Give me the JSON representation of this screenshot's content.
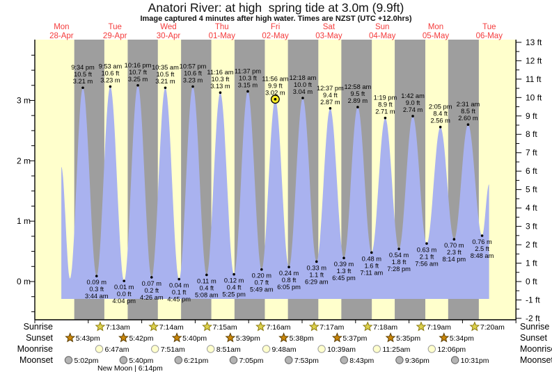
{
  "chart_data": {
    "type": "area",
    "title": "Anatori River: at high  spring tide at 3.0m (9.9ft)",
    "subtitle": "Image captured 4 minutes after high water. Times are NZST (UTC +12.0hrs)",
    "days": [
      {
        "label": "Mon",
        "date": "28-Apr"
      },
      {
        "label": "Tue",
        "date": "29-Apr"
      },
      {
        "label": "Wed",
        "date": "30-Apr"
      },
      {
        "label": "Thu",
        "date": "01-May"
      },
      {
        "label": "Fri",
        "date": "02-May"
      },
      {
        "label": "Sat",
        "date": "03-May"
      },
      {
        "label": "Sun",
        "date": "04-May"
      },
      {
        "label": "Mon",
        "date": "05-May"
      },
      {
        "label": "Tue",
        "date": "06-May"
      }
    ],
    "y_axis_left": {
      "unit": "m",
      "labels": [
        "0 m",
        "1 m",
        "2 m",
        "3 m"
      ],
      "values": [
        0,
        1,
        2,
        3
      ]
    },
    "y_axis_right": {
      "unit": "ft",
      "min": -2,
      "max": 13
    },
    "colors": {
      "day": "#ffffcc",
      "night": "#9e9e9e",
      "tide": "#a9b2ef",
      "day_label": "#f43b3b",
      "marker": "#ffee22"
    },
    "tide_extrema": [
      {
        "h": 11.9,
        "height_m": 1.9
      },
      {
        "h": 15.78,
        "height_m": 0.05
      },
      {
        "kind": "H",
        "day": 0,
        "time": "9:34 pm",
        "ft": "10.5 ft",
        "m": "3.21 m",
        "height_m": 3.21
      },
      {
        "kind": "L",
        "day": 1,
        "time": "3:44 am",
        "ft": "0.3 ft",
        "m": "0.09 m",
        "height_m": 0.09
      },
      {
        "kind": "H",
        "day": 1,
        "time": "9:53 am",
        "ft": "10.6 ft",
        "m": "3.23 m",
        "height_m": 3.23
      },
      {
        "kind": "L",
        "day": 1,
        "time": "4:04 pm",
        "ft": "0.0 ft",
        "m": "0.01 m",
        "height_m": 0.01
      },
      {
        "kind": "H",
        "day": 1,
        "time": "10:16 pm",
        "ft": "10.7 ft",
        "m": "3.25 m",
        "height_m": 3.25
      },
      {
        "kind": "L",
        "day": 2,
        "time": "4:26 am",
        "ft": "0.2 ft",
        "m": "0.07 m",
        "height_m": 0.07
      },
      {
        "kind": "H",
        "day": 2,
        "time": "10:35 am",
        "ft": "10.5 ft",
        "m": "3.21 m",
        "height_m": 3.21
      },
      {
        "kind": "L",
        "day": 2,
        "time": "4:45 pm",
        "ft": "0.1 ft",
        "m": "0.04 m",
        "height_m": 0.04
      },
      {
        "kind": "H",
        "day": 2,
        "time": "10:57 pm",
        "ft": "10.6 ft",
        "m": "3.23 m",
        "height_m": 3.23
      },
      {
        "kind": "L",
        "day": 3,
        "time": "5:08 am",
        "ft": "0.4 ft",
        "m": "0.11 m",
        "height_m": 0.11
      },
      {
        "kind": "H",
        "day": 3,
        "time": "11:16 am",
        "ft": "10.3 ft",
        "m": "3.13 m",
        "height_m": 3.13
      },
      {
        "kind": "L",
        "day": 3,
        "time": "5:25 pm",
        "ft": "0.4 ft",
        "m": "0.12 m",
        "height_m": 0.12
      },
      {
        "kind": "H",
        "day": 3,
        "time": "11:37 pm",
        "ft": "10.3 ft",
        "m": "3.15 m",
        "height_m": 3.15
      },
      {
        "kind": "L",
        "day": 4,
        "time": "5:49 am",
        "ft": "0.7 ft",
        "m": "0.20 m",
        "height_m": 0.2
      },
      {
        "kind": "H",
        "day": 4,
        "time": "11:56 am",
        "ft": "9.9 ft",
        "m": "3.02 m",
        "height_m": 3.02,
        "marker": true
      },
      {
        "kind": "L",
        "day": 4,
        "time": "6:05 pm",
        "ft": "0.8 ft",
        "m": "0.24 m",
        "height_m": 0.24
      },
      {
        "kind": "H",
        "day": 5,
        "time": "12:18 am",
        "ft": "10.0 ft",
        "m": "3.04 m",
        "height_m": 3.04
      },
      {
        "kind": "L",
        "day": 5,
        "time": "6:29 am",
        "ft": "1.1 ft",
        "m": "0.33 m",
        "height_m": 0.33
      },
      {
        "kind": "H",
        "day": 5,
        "time": "12:37 pm",
        "ft": "9.4 ft",
        "m": "2.87 m",
        "height_m": 2.87
      },
      {
        "kind": "L",
        "day": 5,
        "time": "6:45 pm",
        "ft": "1.3 ft",
        "m": "0.39 m",
        "height_m": 0.39
      },
      {
        "kind": "H",
        "day": 6,
        "time": "12:58 am",
        "ft": "9.5 ft",
        "m": "2.89 m",
        "height_m": 2.89
      },
      {
        "kind": "L",
        "day": 6,
        "time": "7:11 am",
        "ft": "1.6 ft",
        "m": "0.48 m",
        "height_m": 0.48
      },
      {
        "kind": "H",
        "day": 6,
        "time": "1:19 pm",
        "ft": "8.9 ft",
        "m": "2.71 m",
        "height_m": 2.71
      },
      {
        "kind": "L",
        "day": 6,
        "time": "7:28 pm",
        "ft": "1.8 ft",
        "m": "0.54 m",
        "height_m": 0.54
      },
      {
        "kind": "H",
        "day": 7,
        "time": "1:42 am",
        "ft": "9.0 ft",
        "m": "2.74 m",
        "height_m": 2.74
      },
      {
        "kind": "L",
        "day": 7,
        "time": "7:56 am",
        "ft": "2.1 ft",
        "m": "0.63 m",
        "height_m": 0.63
      },
      {
        "kind": "H",
        "day": 7,
        "time": "2:05 pm",
        "ft": "8.4 ft",
        "m": "2.56 m",
        "height_m": 2.56
      },
      {
        "kind": "L",
        "day": 7,
        "time": "8:14 pm",
        "ft": "2.3 ft",
        "m": "0.70 m",
        "height_m": 0.7
      },
      {
        "kind": "H",
        "day": 8,
        "time": "2:31 am",
        "ft": "8.5 ft",
        "m": "2.60 m",
        "height_m": 2.6
      },
      {
        "kind": "L",
        "day": 8,
        "time": "8:48 am",
        "ft": "2.5 ft",
        "m": "0.76 m",
        "height_m": 0.76
      },
      {
        "h": 203.93,
        "height_m": 1.61
      }
    ],
    "astro": {
      "rows": [
        {
          "name": "Sunrise",
          "icon": "sunrise-star-icon",
          "items": [
            {
              "day": 1,
              "time": "7:13am"
            },
            {
              "day": 2,
              "time": "7:14am"
            },
            {
              "day": 3,
              "time": "7:15am"
            },
            {
              "day": 4,
              "time": "7:16am"
            },
            {
              "day": 5,
              "time": "7:17am"
            },
            {
              "day": 6,
              "time": "7:18am"
            },
            {
              "day": 7,
              "time": "7:19am"
            },
            {
              "day": 8,
              "time": "7:20am"
            }
          ]
        },
        {
          "name": "Sunset",
          "icon": "sunset-star-icon",
          "items": [
            {
              "day": 0,
              "time": "5:43pm"
            },
            {
              "day": 1,
              "time": "5:42pm"
            },
            {
              "day": 2,
              "time": "5:40pm"
            },
            {
              "day": 3,
              "time": "5:39pm"
            },
            {
              "day": 4,
              "time": "5:38pm"
            },
            {
              "day": 5,
              "time": "5:37pm"
            },
            {
              "day": 6,
              "time": "5:35pm"
            },
            {
              "day": 7,
              "time": "5:34pm"
            }
          ]
        },
        {
          "name": "Moonrise",
          "icon": "moonrise-circle-icon",
          "items": [
            {
              "day": 1,
              "time": "6:47am"
            },
            {
              "day": 2,
              "time": "7:51am"
            },
            {
              "day": 3,
              "time": "8:51am"
            },
            {
              "day": 4,
              "time": "9:48am"
            },
            {
              "day": 5,
              "time": "10:39am"
            },
            {
              "day": 6,
              "time": "11:25am"
            },
            {
              "day": 7,
              "time": "12:06pm"
            }
          ]
        },
        {
          "name": "Moonset",
          "icon": "moonset-circle-icon",
          "items": [
            {
              "day": 0,
              "time": "5:02pm"
            },
            {
              "day": 1,
              "time": "5:40pm"
            },
            {
              "day": 2,
              "time": "6:21pm"
            },
            {
              "day": 3,
              "time": "7:05pm"
            },
            {
              "day": 4,
              "time": "7:53pm"
            },
            {
              "day": 5,
              "time": "8:43pm"
            },
            {
              "day": 6,
              "time": "9:36pm"
            },
            {
              "day": 7,
              "time": "10:31pm"
            }
          ]
        }
      ],
      "new_moon": "New Moon | 6:14pm"
    }
  }
}
